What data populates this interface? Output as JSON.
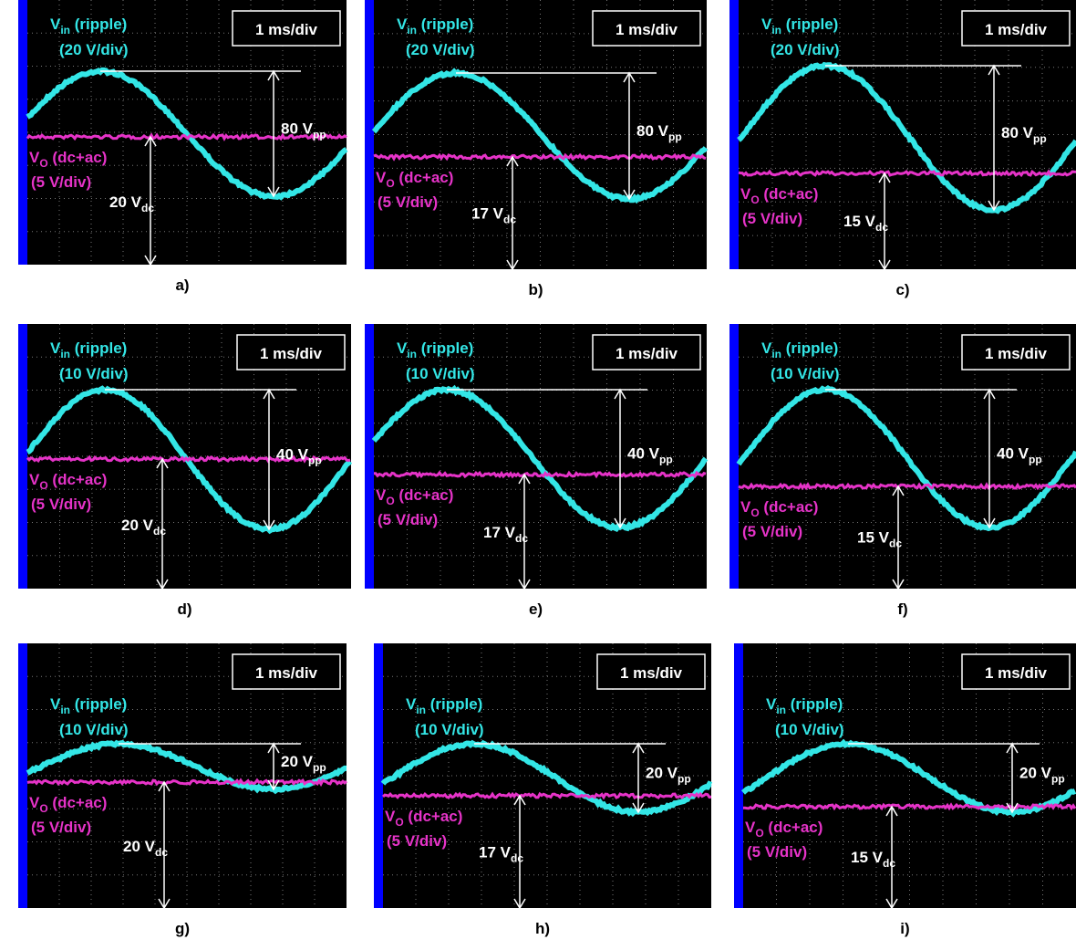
{
  "panels": [
    {
      "caption": "a)",
      "time_div": "1 ms/div",
      "vin": {
        "symbol": "V",
        "sub": "in",
        "desc": " (ripple)",
        "scale": "(20 V/div)"
      },
      "vo": {
        "symbol": "V",
        "sub": "O",
        "desc": " (dc+ac)",
        "scale": "(5 V/div)"
      },
      "vpp": {
        "value": "80 V",
        "sub": "pp"
      },
      "vdc": {
        "value": "20 V",
        "sub": "dc"
      }
    },
    {
      "caption": "b)",
      "time_div": "1 ms/div",
      "vin": {
        "symbol": "V",
        "sub": "in",
        "desc": " (ripple)",
        "scale": "(20 V/div)"
      },
      "vo": {
        "symbol": "V",
        "sub": "O",
        "desc": " (dc+ac)",
        "scale": "(5 V/div)"
      },
      "vpp": {
        "value": "80 V",
        "sub": "pp"
      },
      "vdc": {
        "value": "17 V",
        "sub": "dc"
      }
    },
    {
      "caption": "c)",
      "time_div": "1 ms/div",
      "vin": {
        "symbol": "V",
        "sub": "in",
        "desc": " (ripple)",
        "scale": "(20 V/div)"
      },
      "vo": {
        "symbol": "V",
        "sub": "O",
        "desc": " (dc+ac)",
        "scale": "(5 V/div)"
      },
      "vpp": {
        "value": "80 V",
        "sub": "pp"
      },
      "vdc": {
        "value": "15 V",
        "sub": "dc"
      }
    },
    {
      "caption": "d)",
      "time_div": "1 ms/div",
      "vin": {
        "symbol": "V",
        "sub": "in",
        "desc": " (ripple)",
        "scale": "(10 V/div)"
      },
      "vo": {
        "symbol": "V",
        "sub": "O",
        "desc": " (dc+ac)",
        "scale": "(5 V/div)"
      },
      "vpp": {
        "value": "40 V",
        "sub": "pp"
      },
      "vdc": {
        "value": "20 V",
        "sub": "dc"
      }
    },
    {
      "caption": "e)",
      "time_div": "1 ms/div",
      "vin": {
        "symbol": "V",
        "sub": "in",
        "desc": " (ripple)",
        "scale": "(10 V/div)"
      },
      "vo": {
        "symbol": "V",
        "sub": "O",
        "desc": " (dc+ac)",
        "scale": "(5 V/div)"
      },
      "vpp": {
        "value": "40 V",
        "sub": "pp"
      },
      "vdc": {
        "value": "17 V",
        "sub": "dc"
      }
    },
    {
      "caption": "f)",
      "time_div": "1 ms/div",
      "vin": {
        "symbol": "V",
        "sub": "in",
        "desc": " (ripple)",
        "scale": "(10 V/div)"
      },
      "vo": {
        "symbol": "V",
        "sub": "O",
        "desc": " (dc+ac)",
        "scale": "(5 V/div)"
      },
      "vpp": {
        "value": "40 V",
        "sub": "pp"
      },
      "vdc": {
        "value": "15 V",
        "sub": "dc"
      }
    },
    {
      "caption": "g)",
      "time_div": "1 ms/div",
      "vin": {
        "symbol": "V",
        "sub": "in",
        "desc": " (ripple)",
        "scale": "(10 V/div)"
      },
      "vo": {
        "symbol": "V",
        "sub": "O",
        "desc": " (dc+ac)",
        "scale": "(5 V/div)"
      },
      "vpp": {
        "value": "20 V",
        "sub": "pp"
      },
      "vdc": {
        "value": "20 V",
        "sub": "dc"
      }
    },
    {
      "caption": "h)",
      "time_div": "1 ms/div",
      "vin": {
        "symbol": "V",
        "sub": "in",
        "desc": " (ripple)",
        "scale": "(10 V/div)"
      },
      "vo": {
        "symbol": "V",
        "sub": "O",
        "desc": " (dc+ac)",
        "scale": "(5 V/div)"
      },
      "vpp": {
        "value": "20 V",
        "sub": "pp"
      },
      "vdc": {
        "value": "17 V",
        "sub": "dc"
      }
    },
    {
      "caption": "i)",
      "time_div": "1 ms/div",
      "vin": {
        "symbol": "V",
        "sub": "in",
        "desc": " (ripple)",
        "scale": "(10 V/div)"
      },
      "vo": {
        "symbol": "V",
        "sub": "O",
        "desc": " (dc+ac)",
        "scale": "(5 V/div)"
      },
      "vpp": {
        "value": "20 V",
        "sub": "pp"
      },
      "vdc": {
        "value": "15 V",
        "sub": "dc"
      }
    }
  ]
}
